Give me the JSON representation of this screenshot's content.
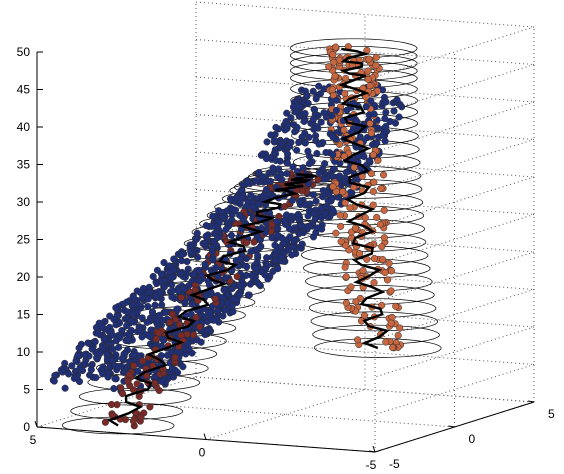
{
  "chart_data": {
    "type": "scatter",
    "projection": "3d",
    "title": "",
    "xlabel": "",
    "ylabel": "",
    "zlabel": "",
    "xlim": [
      -5,
      5
    ],
    "ylim": [
      -5,
      5
    ],
    "zlim": [
      0,
      50
    ],
    "grid": true,
    "box": "open-back",
    "x_ticks": [
      "5",
      "0",
      "-5"
    ],
    "y_ticks": [
      "-5",
      "0",
      "5"
    ],
    "z_ticks": [
      "0",
      "5",
      "10",
      "15",
      "20",
      "25",
      "30",
      "35",
      "40",
      "45",
      "50"
    ],
    "colors": {
      "orange": "#c8663f",
      "blue": "#1f2f78",
      "maroon": "#7a2a27",
      "centerline": "#000000",
      "ellipse": "#000000",
      "grid": "#555555"
    },
    "series": [
      {
        "color_key": "orange",
        "marker": "filled-circle",
        "centerline": [
          [
            -4.0,
            -2.7,
            12
          ],
          [
            -3.6,
            -2.3,
            19
          ],
          [
            -3.2,
            -2.0,
            26
          ],
          [
            -2.9,
            -1.6,
            33
          ],
          [
            -2.6,
            -1.2,
            40
          ],
          [
            -2.4,
            -0.8,
            46
          ],
          [
            -2.3,
            -0.6,
            50
          ]
        ],
        "tube_radius": 0.7,
        "ellipse_radius": 1.7,
        "ellipse_count": 26,
        "point_count": 260
      },
      {
        "color_key": "blue",
        "marker": "filled-circle",
        "centerline": [
          [
            -2.2,
            -0.5,
            44
          ],
          [
            -1.1,
            -0.8,
            33
          ],
          [
            0.3,
            -1.0,
            25
          ],
          [
            1.8,
            -1.3,
            18
          ],
          [
            3.2,
            -1.6,
            11
          ],
          [
            4.3,
            -2.1,
            4
          ]
        ],
        "tube_radius": 1.6,
        "ellipse_radius": 0,
        "ellipse_count": 0,
        "point_count": 1300
      },
      {
        "color_key": "maroon",
        "marker": "filled-circle",
        "centerline": [
          [
            2.6,
            -5.0,
            1
          ],
          [
            1.9,
            -3.8,
            10
          ],
          [
            1.1,
            -2.5,
            18
          ],
          [
            0.5,
            -1.3,
            25
          ],
          [
            -0.1,
            -0.2,
            30
          ],
          [
            -0.5,
            0.4,
            32
          ]
        ],
        "tube_radius": 0.6,
        "ellipse_radius": 1.5,
        "ellipse_count": 26,
        "point_count": 180
      }
    ]
  }
}
